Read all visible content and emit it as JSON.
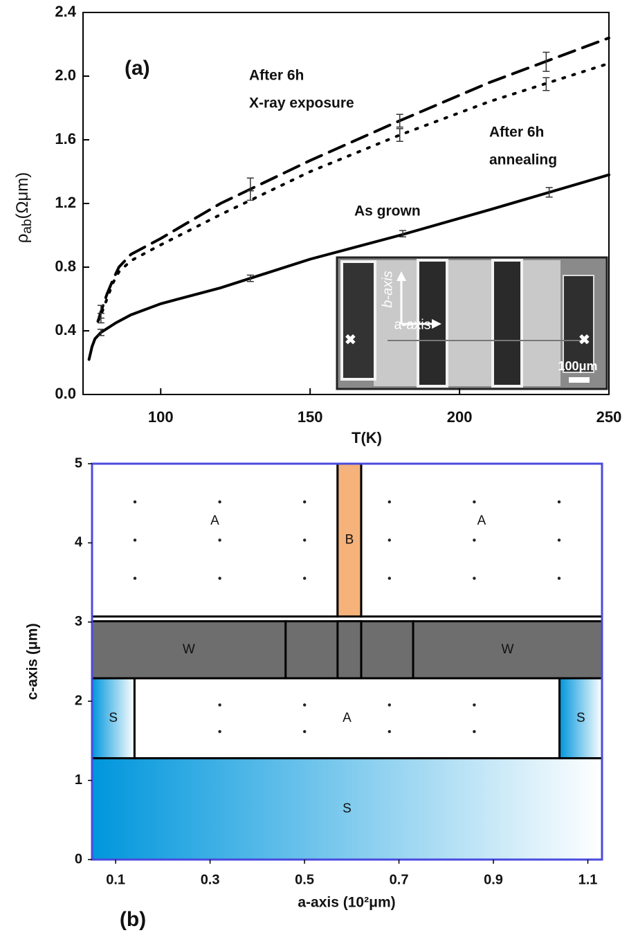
{
  "chart_data": [
    {
      "type": "line",
      "panel_label": "(a)",
      "xlabel": "T(K)",
      "ylabel": {
        "symbol": "ρ",
        "subscript": "ab",
        "unit": "(Ωμm)"
      },
      "xlim": [
        74,
        250
      ],
      "xticks": [
        100,
        150,
        200,
        250
      ],
      "ylim": [
        0,
        2.4
      ],
      "yticks": [
        {
          "value": 0,
          "label": "0.0"
        },
        0.4,
        0.8,
        1.2,
        1.6,
        {
          "value": 2,
          "label": "2.0"
        },
        2.4
      ],
      "series": [
        {
          "label": [
            "As grown"
          ],
          "color": "#000000",
          "line_style": "solid",
          "x": [
            76,
            77,
            78,
            80,
            85,
            90,
            100,
            120,
            150,
            180,
            210,
            250
          ],
          "values": [
            0.22,
            0.3,
            0.35,
            0.39,
            0.45,
            0.5,
            0.57,
            0.67,
            0.85,
            1.0,
            1.16,
            1.38
          ],
          "errorbars": {
            "x": [
              80,
              130,
              181,
              230
            ],
            "values": [
              0.39,
              0.73,
              1.01,
              1.27
            ],
            "errors": [
              0.02,
              0.02,
              0.02,
              0.03
            ]
          }
        },
        {
          "label": [
            "After 6h",
            "X-ray exposure"
          ],
          "color": "#000000",
          "line_style": "dashed",
          "x": [
            79,
            80,
            82,
            84,
            86,
            90,
            100,
            120,
            150,
            180,
            210,
            250
          ],
          "values": [
            0.46,
            0.52,
            0.63,
            0.72,
            0.8,
            0.88,
            0.98,
            1.2,
            1.47,
            1.72,
            1.96,
            2.24
          ],
          "errorbars": {
            "x": [
              80,
              130,
              180,
              229
            ],
            "values": [
              0.52,
              1.32,
              1.72,
              2.09
            ],
            "errors": [
              0.04,
              0.04,
              0.04,
              0.06
            ]
          }
        },
        {
          "label": [
            "After 6h",
            "annealing"
          ],
          "color": "#000000",
          "line_style": "dotted",
          "x": [
            79,
            80,
            82,
            84,
            86,
            90,
            100,
            120,
            150,
            180,
            210,
            250
          ],
          "values": [
            0.46,
            0.5,
            0.6,
            0.7,
            0.77,
            0.84,
            0.94,
            1.13,
            1.4,
            1.63,
            1.84,
            2.08
          ],
          "errorbars": {
            "x": [
              80,
              130,
              180,
              229
            ],
            "values": [
              0.48,
              1.25,
              1.63,
              1.95
            ],
            "errors": [
              0.03,
              0.03,
              0.04,
              0.04
            ]
          }
        }
      ],
      "inset": {
        "labels": [
          "b-axis",
          "a-axis",
          "100μm"
        ]
      }
    },
    {
      "type": "regions",
      "panel_label": "(b)",
      "xlabel": "a-axis (10²μm)",
      "ylabel": "c-axis (μm)",
      "xlim": [
        0.05,
        1.13
      ],
      "xticks": [
        0.1,
        0.3,
        0.5,
        0.7,
        0.9,
        1.1
      ],
      "ylim": [
        0,
        5
      ],
      "yticks": [
        0,
        1,
        2,
        3,
        4,
        5
      ],
      "frame_color": "#4a4adf",
      "regions": [
        {
          "label": "S",
          "x": [
            0.05,
            1.13
          ],
          "y": [
            0,
            1.28
          ],
          "color": "#0096dc",
          "gradient": true
        },
        {
          "label": "S",
          "x": [
            0.05,
            0.14
          ],
          "y": [
            1.28,
            2.29
          ],
          "color": "#0096dc",
          "gradient": true
        },
        {
          "label": "A",
          "x": [
            0.14,
            1.04
          ],
          "y": [
            1.28,
            2.29
          ],
          "color": "#ffffff",
          "gradient": false
        },
        {
          "label": "S",
          "x": [
            1.04,
            1.13
          ],
          "y": [
            1.28,
            2.29
          ],
          "color": "#0096dc",
          "gradient": true
        },
        {
          "label": "W",
          "x": [
            0.05,
            0.46
          ],
          "y": [
            2.29,
            3.01
          ],
          "color": "#6e6e6e",
          "gradient": false
        },
        {
          "x": [
            0.46,
            0.73
          ],
          "y": [
            2.29,
            3.01
          ],
          "color": "#6e6e6e",
          "gradient": false
        },
        {
          "label": "W",
          "x": [
            0.73,
            1.13
          ],
          "y": [
            2.29,
            3.01
          ],
          "color": "#6e6e6e",
          "gradient": false
        },
        {
          "x": [
            0.57,
            0.62
          ],
          "y": [
            2.29,
            3.01
          ],
          "color": "#6e6e6e",
          "gradient": false
        },
        {
          "label": "A",
          "x": [
            0.05,
            0.57
          ],
          "y": [
            3.07,
            5
          ],
          "color": "#ffffff",
          "gradient": false
        },
        {
          "label": "B",
          "x": [
            0.57,
            0.62
          ],
          "y": [
            3.07,
            5
          ],
          "color": "#f5b27a",
          "gradient": false
        },
        {
          "label": "A",
          "x": [
            0.62,
            1.13
          ],
          "y": [
            3.07,
            5
          ],
          "color": "#ffffff",
          "gradient": false
        }
      ]
    }
  ]
}
